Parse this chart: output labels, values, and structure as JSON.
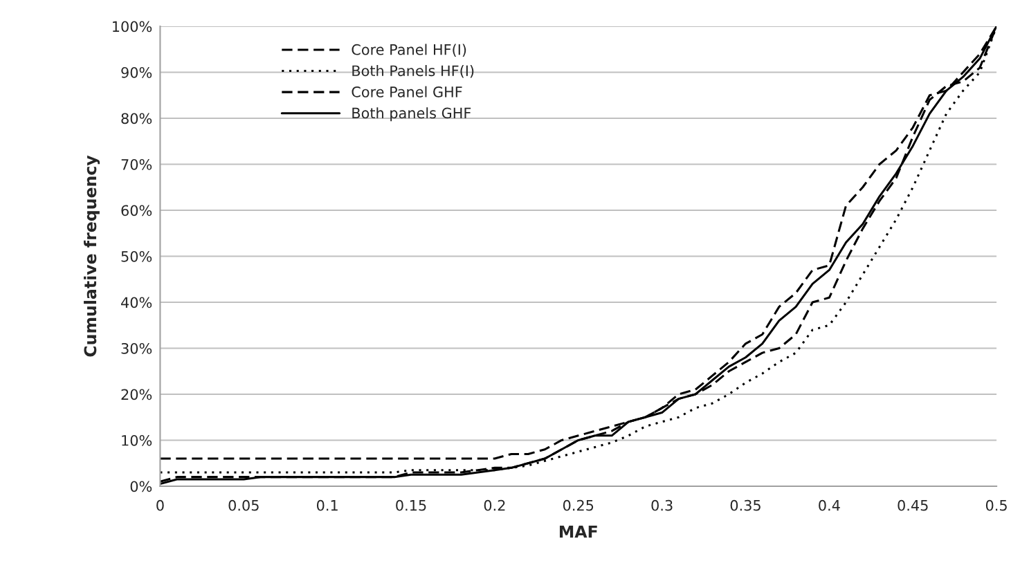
{
  "chart_data": {
    "type": "line",
    "xlabel": "MAF",
    "ylabel": "Cumulative frequency",
    "x": [
      0,
      0.01,
      0.02,
      0.03,
      0.04,
      0.05,
      0.06,
      0.07,
      0.08,
      0.09,
      0.1,
      0.11,
      0.12,
      0.13,
      0.14,
      0.15,
      0.16,
      0.17,
      0.18,
      0.19,
      0.2,
      0.21,
      0.22,
      0.23,
      0.24,
      0.25,
      0.26,
      0.27,
      0.28,
      0.29,
      0.3,
      0.31,
      0.32,
      0.33,
      0.34,
      0.35,
      0.36,
      0.37,
      0.38,
      0.39,
      0.4,
      0.41,
      0.42,
      0.43,
      0.44,
      0.45,
      0.46,
      0.47,
      0.48,
      0.49,
      0.5
    ],
    "series": [
      {
        "name": "Core Panel HF(I)",
        "color": "#000000",
        "line_style": "dashed",
        "values": [
          6,
          6,
          6,
          6,
          6,
          6,
          6,
          6,
          6,
          6,
          6,
          6,
          6,
          6,
          6,
          6,
          6,
          6,
          6,
          6,
          6,
          7,
          7,
          8,
          10,
          11,
          12,
          13,
          14,
          15,
          17,
          19,
          20,
          22,
          25,
          27,
          29,
          30,
          33,
          40,
          41,
          49,
          56,
          62,
          67,
          76,
          84,
          87,
          88,
          91,
          100
        ]
      },
      {
        "name": "Both Panels HF(I)",
        "color": "#000000",
        "line_style": "dotted",
        "values": [
          3,
          3,
          3,
          3,
          3,
          3,
          3,
          3,
          3,
          3,
          3,
          3,
          3,
          3,
          3,
          3.5,
          3.5,
          3.5,
          3.5,
          3.5,
          3.5,
          4,
          4.5,
          5.5,
          6.5,
          7.5,
          8.5,
          9.5,
          11,
          13,
          14,
          15,
          17,
          18,
          20,
          22.5,
          24.5,
          27,
          29,
          34,
          35,
          40,
          46,
          52,
          58,
          65,
          73,
          81,
          86,
          90,
          100
        ]
      },
      {
        "name": "Core Panel GHF",
        "color": "#000000",
        "line_style": "dashed",
        "values": [
          1,
          2,
          2,
          2,
          2,
          2,
          2,
          2,
          2,
          2,
          2,
          2,
          2,
          2,
          2,
          3,
          3,
          3,
          3,
          3.5,
          4,
          4,
          5,
          6,
          8,
          10,
          11,
          12,
          14,
          15,
          17,
          20,
          21,
          24,
          27,
          31,
          33,
          39,
          42,
          47,
          48,
          61,
          65,
          70,
          73,
          78,
          85,
          86,
          90,
          94,
          100
        ]
      },
      {
        "name": "Both panels GHF",
        "color": "#000000",
        "line_style": "solid",
        "values": [
          0.5,
          1.5,
          1.5,
          1.5,
          1.5,
          1.5,
          2,
          2,
          2,
          2,
          2,
          2,
          2,
          2,
          2,
          2.5,
          2.5,
          2.5,
          2.5,
          3,
          3.5,
          4,
          5,
          6,
          8,
          10,
          11,
          11,
          14,
          15,
          16,
          19,
          20,
          23,
          26,
          28,
          31,
          36,
          39,
          44,
          47,
          53,
          57,
          63,
          68,
          74,
          81,
          86,
          89,
          93,
          100
        ]
      }
    ],
    "xlim": [
      0,
      0.5
    ],
    "xticks": [
      0,
      0.05,
      0.1,
      0.15,
      0.2,
      0.25,
      0.3,
      0.35,
      0.4,
      0.45,
      0.5
    ],
    "ylim": [
      0,
      100
    ],
    "yticks": [
      {
        "value": 0,
        "label": "0%"
      },
      {
        "value": 10,
        "label": "10%"
      },
      {
        "value": 20,
        "label": "20%"
      },
      {
        "value": 30,
        "label": "30%"
      },
      {
        "value": 40,
        "label": "40%"
      },
      {
        "value": 50,
        "label": "50%"
      },
      {
        "value": 60,
        "label": "60%"
      },
      {
        "value": 70,
        "label": "70%"
      },
      {
        "value": 80,
        "label": "80%"
      },
      {
        "value": 90,
        "label": "90%"
      },
      {
        "value": 100,
        "label": "100%"
      }
    ],
    "grid": "y",
    "legend": "top left"
  }
}
